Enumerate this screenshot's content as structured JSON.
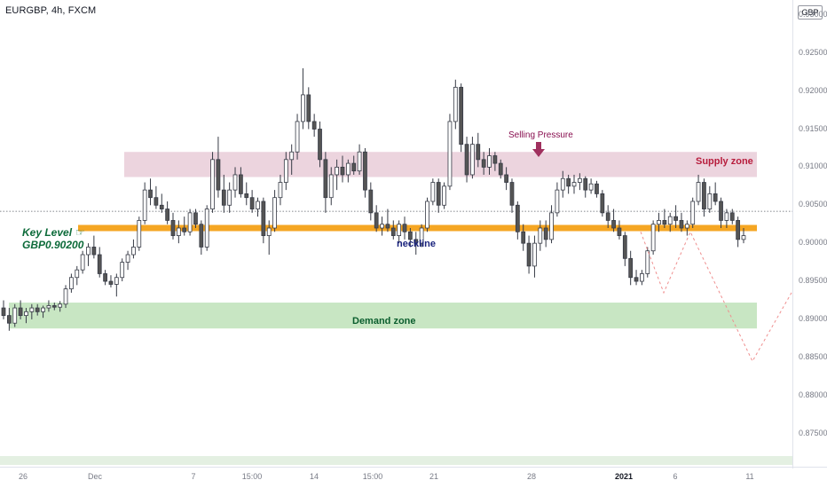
{
  "header": {
    "symbol_title": "EURGBP, 4h, FXCM"
  },
  "price_axis": {
    "currency": "GBP",
    "labels": [
      "0.93000",
      "0.92500",
      "0.92000",
      "0.91500",
      "0.91000",
      "0.90500",
      "0.90000",
      "0.89500",
      "0.89000",
      "0.88500",
      "0.88000",
      "0.87500"
    ]
  },
  "time_axis": {
    "labels": [
      {
        "text": "26",
        "bold": false
      },
      {
        "text": "Dec",
        "bold": false
      },
      {
        "text": "7",
        "bold": false
      },
      {
        "text": "15:00",
        "bold": false
      },
      {
        "text": "14",
        "bold": false
      },
      {
        "text": "15:00",
        "bold": false
      },
      {
        "text": "21",
        "bold": false
      },
      {
        "text": "28",
        "bold": false
      },
      {
        "text": "2021",
        "bold": true
      },
      {
        "text": "6",
        "bold": false
      },
      {
        "text": "11",
        "bold": false
      }
    ]
  },
  "annotations": {
    "supply_zone": "Supply zone",
    "demand_zone": "Demand zone",
    "neckline": "neckline",
    "selling_pressure": "Selling Pressure",
    "key_level_line1": "Key Level",
    "key_level_line2": "GBP0.90200",
    "hand_icon": "pointing-hand-icon"
  },
  "colors": {
    "bull": "#ffffff",
    "bear": "#555555",
    "key_level_line": "#f5a623",
    "supply_zone": "#ecd4de",
    "demand_zone": "#c8e6c3",
    "projection": "#ef8f8f",
    "arrow": "#a0305e"
  },
  "chart_data": {
    "type": "candlestick",
    "symbol": "EURGBP",
    "timeframe": "4h",
    "source": "FXCM",
    "ylim": [
      0.8725,
      0.9315
    ],
    "key_level": 0.902,
    "last_price": 0.9042,
    "supply_zone": [
      0.9087,
      0.912
    ],
    "demand_zone": [
      0.8888,
      0.8922
    ],
    "projection_path": [
      [
        0.9015,
        0.8935
      ],
      [
        0.8935,
        0.9015
      ],
      [
        0.9015,
        0.8845
      ],
      [
        0.8845,
        0.8935
      ]
    ],
    "candles": [
      [
        0.8915,
        0.8925,
        0.89,
        0.8905
      ],
      [
        0.8905,
        0.8915,
        0.8885,
        0.8895
      ],
      [
        0.8895,
        0.892,
        0.889,
        0.8915
      ],
      [
        0.8915,
        0.8925,
        0.89,
        0.8905
      ],
      [
        0.8905,
        0.8915,
        0.8895,
        0.891
      ],
      [
        0.891,
        0.892,
        0.89,
        0.8915
      ],
      [
        0.8915,
        0.892,
        0.8905,
        0.891
      ],
      [
        0.891,
        0.8918,
        0.8902,
        0.8915
      ],
      [
        0.8915,
        0.8925,
        0.891,
        0.8918
      ],
      [
        0.8918,
        0.8922,
        0.8912,
        0.8916
      ],
      [
        0.8916,
        0.8924,
        0.891,
        0.892
      ],
      [
        0.892,
        0.8945,
        0.8915,
        0.894
      ],
      [
        0.894,
        0.896,
        0.8935,
        0.8955
      ],
      [
        0.8955,
        0.897,
        0.8945,
        0.8965
      ],
      [
        0.8965,
        0.899,
        0.896,
        0.8985
      ],
      [
        0.8985,
        0.9,
        0.897,
        0.8995
      ],
      [
        0.8995,
        0.901,
        0.898,
        0.8985
      ],
      [
        0.8985,
        0.8995,
        0.8955,
        0.896
      ],
      [
        0.896,
        0.8965,
        0.8945,
        0.895
      ],
      [
        0.895,
        0.8958,
        0.8942,
        0.8946
      ],
      [
        0.8946,
        0.896,
        0.893,
        0.8955
      ],
      [
        0.8955,
        0.898,
        0.895,
        0.8975
      ],
      [
        0.8975,
        0.899,
        0.8965,
        0.8985
      ],
      [
        0.8985,
        0.9005,
        0.898,
        0.8995
      ],
      [
        0.8995,
        0.9035,
        0.899,
        0.903
      ],
      [
        0.903,
        0.908,
        0.9025,
        0.907
      ],
      [
        0.907,
        0.9085,
        0.905,
        0.906
      ],
      [
        0.906,
        0.9075,
        0.9045,
        0.905
      ],
      [
        0.905,
        0.9065,
        0.904,
        0.9045
      ],
      [
        0.9045,
        0.9055,
        0.9025,
        0.903
      ],
      [
        0.903,
        0.904,
        0.9005,
        0.901
      ],
      [
        0.901,
        0.903,
        0.9,
        0.902
      ],
      [
        0.902,
        0.9035,
        0.901,
        0.9015
      ],
      [
        0.9015,
        0.9045,
        0.901,
        0.904
      ],
      [
        0.904,
        0.9045,
        0.902,
        0.9025
      ],
      [
        0.9025,
        0.903,
        0.8985,
        0.8995
      ],
      [
        0.8995,
        0.905,
        0.899,
        0.9045
      ],
      [
        0.9045,
        0.912,
        0.904,
        0.911
      ],
      [
        0.911,
        0.914,
        0.906,
        0.907
      ],
      [
        0.907,
        0.909,
        0.904,
        0.905
      ],
      [
        0.905,
        0.908,
        0.904,
        0.907
      ],
      [
        0.907,
        0.91,
        0.906,
        0.909
      ],
      [
        0.909,
        0.91,
        0.906,
        0.9065
      ],
      [
        0.9065,
        0.908,
        0.905,
        0.906
      ],
      [
        0.906,
        0.907,
        0.904,
        0.9045
      ],
      [
        0.9045,
        0.906,
        0.9035,
        0.9055
      ],
      [
        0.9055,
        0.906,
        0.9,
        0.901
      ],
      [
        0.901,
        0.903,
        0.8985,
        0.902
      ],
      [
        0.902,
        0.907,
        0.9015,
        0.906
      ],
      [
        0.906,
        0.909,
        0.905,
        0.908
      ],
      [
        0.908,
        0.912,
        0.907,
        0.911
      ],
      [
        0.911,
        0.913,
        0.909,
        0.912
      ],
      [
        0.912,
        0.917,
        0.911,
        0.916
      ],
      [
        0.916,
        0.923,
        0.915,
        0.9195
      ],
      [
        0.9195,
        0.9205,
        0.915,
        0.916
      ],
      [
        0.916,
        0.917,
        0.914,
        0.915
      ],
      [
        0.915,
        0.916,
        0.91,
        0.911
      ],
      [
        0.911,
        0.912,
        0.904,
        0.906
      ],
      [
        0.906,
        0.91,
        0.905,
        0.909
      ],
      [
        0.909,
        0.911,
        0.907,
        0.91
      ],
      [
        0.91,
        0.9115,
        0.908,
        0.909
      ],
      [
        0.909,
        0.911,
        0.908,
        0.9105
      ],
      [
        0.9105,
        0.9115,
        0.909,
        0.9095
      ],
      [
        0.9095,
        0.913,
        0.909,
        0.912
      ],
      [
        0.912,
        0.9125,
        0.906,
        0.907
      ],
      [
        0.907,
        0.908,
        0.903,
        0.904
      ],
      [
        0.904,
        0.905,
        0.9015,
        0.902
      ],
      [
        0.902,
        0.9035,
        0.901,
        0.9025
      ],
      [
        0.9025,
        0.9045,
        0.9015,
        0.902
      ],
      [
        0.902,
        0.903,
        0.9005,
        0.901
      ],
      [
        0.901,
        0.903,
        0.9,
        0.9025
      ],
      [
        0.9025,
        0.9035,
        0.9005,
        0.9015
      ],
      [
        0.9015,
        0.902,
        0.8995,
        0.9005
      ],
      [
        0.9005,
        0.9015,
        0.8985,
        0.9
      ],
      [
        0.9,
        0.9025,
        0.8995,
        0.902
      ],
      [
        0.902,
        0.906,
        0.9015,
        0.9055
      ],
      [
        0.9055,
        0.9085,
        0.905,
        0.908
      ],
      [
        0.908,
        0.9085,
        0.904,
        0.905
      ],
      [
        0.905,
        0.908,
        0.9045,
        0.9075
      ],
      [
        0.9075,
        0.917,
        0.907,
        0.916
      ],
      [
        0.916,
        0.9215,
        0.915,
        0.9205
      ],
      [
        0.9205,
        0.921,
        0.912,
        0.913
      ],
      [
        0.913,
        0.914,
        0.908,
        0.909
      ],
      [
        0.909,
        0.914,
        0.9085,
        0.913
      ],
      [
        0.913,
        0.9145,
        0.91,
        0.911
      ],
      [
        0.911,
        0.912,
        0.909,
        0.91
      ],
      [
        0.91,
        0.9125,
        0.909,
        0.9115
      ],
      [
        0.9115,
        0.912,
        0.9095,
        0.9105
      ],
      [
        0.9105,
        0.911,
        0.9085,
        0.909
      ],
      [
        0.909,
        0.91,
        0.907,
        0.908
      ],
      [
        0.908,
        0.9085,
        0.904,
        0.905
      ],
      [
        0.905,
        0.9055,
        0.9005,
        0.9015
      ],
      [
        0.9015,
        0.9025,
        0.899,
        0.9
      ],
      [
        0.9,
        0.901,
        0.896,
        0.897
      ],
      [
        0.897,
        0.901,
        0.8955,
        0.9
      ],
      [
        0.9,
        0.903,
        0.899,
        0.902
      ],
      [
        0.902,
        0.903,
        0.8995,
        0.9005
      ],
      [
        0.9005,
        0.905,
        0.9,
        0.904
      ],
      [
        0.904,
        0.908,
        0.9035,
        0.907
      ],
      [
        0.907,
        0.9095,
        0.906,
        0.9085
      ],
      [
        0.9085,
        0.909,
        0.9065,
        0.9075
      ],
      [
        0.9075,
        0.909,
        0.9065,
        0.908
      ],
      [
        0.908,
        0.9092,
        0.907,
        0.9085
      ],
      [
        0.9085,
        0.9088,
        0.906,
        0.907
      ],
      [
        0.907,
        0.9085,
        0.9065,
        0.9078
      ],
      [
        0.9078,
        0.9082,
        0.906,
        0.9065
      ],
      [
        0.9065,
        0.907,
        0.9035,
        0.904
      ],
      [
        0.904,
        0.905,
        0.902,
        0.903
      ],
      [
        0.903,
        0.9045,
        0.9015,
        0.902
      ],
      [
        0.902,
        0.903,
        0.9005,
        0.901
      ],
      [
        0.901,
        0.9015,
        0.897,
        0.898
      ],
      [
        0.898,
        0.899,
        0.8945,
        0.8955
      ],
      [
        0.8955,
        0.8965,
        0.8945,
        0.895
      ],
      [
        0.895,
        0.8965,
        0.8945,
        0.896
      ],
      [
        0.896,
        0.8995,
        0.8955,
        0.899
      ],
      [
        0.899,
        0.903,
        0.8985,
        0.9025
      ],
      [
        0.9025,
        0.904,
        0.9015,
        0.903
      ],
      [
        0.903,
        0.9045,
        0.902,
        0.9025
      ],
      [
        0.9025,
        0.904,
        0.9015,
        0.9035
      ],
      [
        0.9035,
        0.905,
        0.902,
        0.903
      ],
      [
        0.903,
        0.904,
        0.9015,
        0.902
      ],
      [
        0.902,
        0.903,
        0.901,
        0.9025
      ],
      [
        0.9025,
        0.906,
        0.902,
        0.9055
      ],
      [
        0.9055,
        0.909,
        0.905,
        0.908
      ],
      [
        0.908,
        0.9085,
        0.9035,
        0.9045
      ],
      [
        0.9045,
        0.9075,
        0.904,
        0.9065
      ],
      [
        0.9065,
        0.908,
        0.905,
        0.9055
      ],
      [
        0.9055,
        0.906,
        0.902,
        0.903
      ],
      [
        0.903,
        0.9045,
        0.902,
        0.904
      ],
      [
        0.904,
        0.9045,
        0.9025,
        0.903
      ],
      [
        0.903,
        0.9035,
        0.8995,
        0.9005
      ],
      [
        0.9005,
        0.902,
        0.9,
        0.901
      ]
    ]
  }
}
